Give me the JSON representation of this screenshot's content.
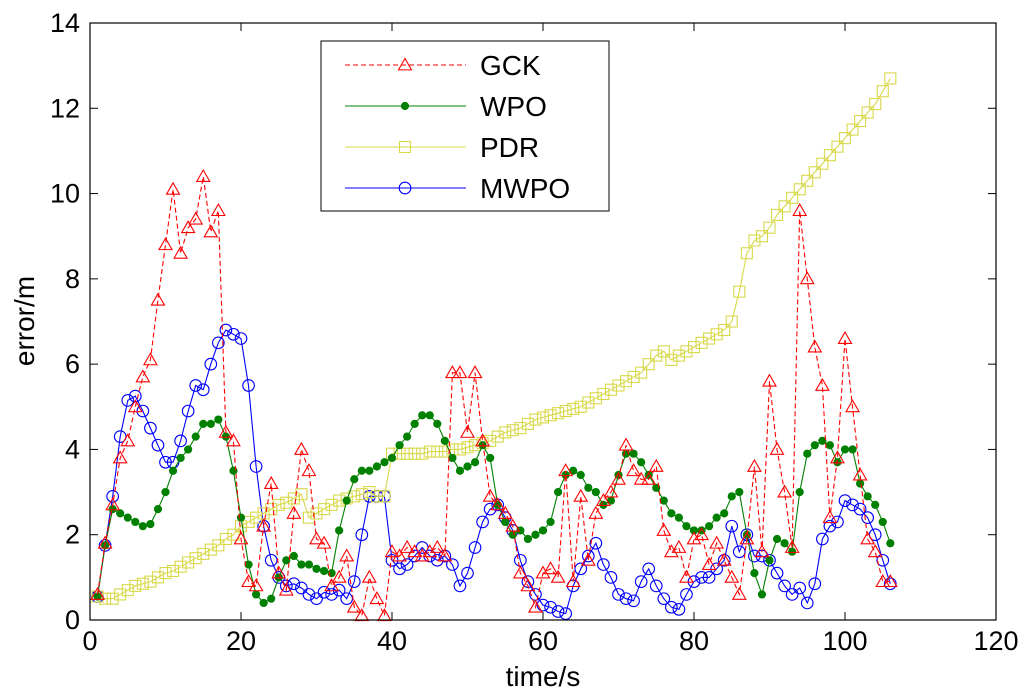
{
  "chart_data": {
    "type": "line",
    "title": "",
    "xlabel": "time/s",
    "ylabel": "error/m",
    "xlim": [
      0,
      120
    ],
    "ylim": [
      0,
      14
    ],
    "xticks": [
      0,
      20,
      40,
      60,
      80,
      100,
      120
    ],
    "yticks": [
      0,
      2,
      4,
      6,
      8,
      10,
      12,
      14
    ],
    "grid": false,
    "legend_position": "top-center",
    "series": [
      {
        "name": "GCK",
        "color": "#ff0000",
        "marker": "triangle",
        "line_style": "dashed",
        "x": [
          1,
          2,
          3,
          4,
          5,
          6,
          7,
          8,
          9,
          10,
          11,
          12,
          13,
          14,
          15,
          16,
          17,
          18,
          19,
          20,
          21,
          22,
          23,
          24,
          25,
          26,
          27,
          28,
          29,
          30,
          31,
          32,
          33,
          34,
          35,
          36,
          37,
          38,
          39,
          40,
          41,
          42,
          43,
          44,
          45,
          46,
          47,
          48,
          49,
          50,
          51,
          52,
          53,
          54,
          55,
          56,
          57,
          58,
          59,
          60,
          61,
          62,
          63,
          64,
          65,
          66,
          67,
          68,
          69,
          70,
          71,
          72,
          73,
          74,
          75,
          76,
          77,
          78,
          79,
          80,
          81,
          82,
          83,
          84,
          85,
          86,
          87,
          88,
          89,
          90,
          91,
          92,
          93,
          94,
          95,
          96,
          97,
          98,
          99,
          100,
          101,
          102,
          103,
          104,
          105,
          106
        ],
        "values": [
          0.6,
          1.8,
          2.7,
          3.8,
          4.2,
          5.0,
          5.7,
          6.1,
          7.5,
          8.8,
          10.1,
          8.6,
          9.2,
          9.4,
          10.4,
          9.1,
          9.6,
          4.4,
          4.2,
          1.9,
          0.9,
          0.8,
          2.2,
          3.2,
          1.1,
          0.7,
          2.5,
          4.0,
          3.5,
          1.9,
          1.8,
          0.8,
          1.0,
          1.5,
          0.3,
          0.1,
          1.0,
          0.5,
          0.1,
          1.6,
          1.5,
          1.7,
          1.6,
          1.5,
          1.6,
          1.7,
          1.5,
          5.8,
          5.8,
          4.4,
          5.8,
          4.2,
          2.9,
          2.7,
          2.5,
          2.2,
          1.1,
          0.8,
          0.3,
          1.1,
          1.2,
          1.0,
          3.5,
          0.9,
          2.9,
          1.4,
          2.5,
          2.8,
          3.0,
          3.3,
          4.1,
          3.5,
          3.3,
          3.3,
          3.6,
          2.1,
          1.6,
          1.7,
          1.0,
          1.9,
          2.0,
          1.3,
          1.8,
          1.4,
          1.0,
          0.6,
          1.9,
          3.6,
          1.6,
          5.6,
          4.0,
          3.0,
          1.7,
          9.6,
          8.0,
          6.4,
          5.5,
          2.4,
          3.8,
          6.6,
          5.0,
          3.4,
          1.9,
          1.6,
          0.9,
          0.9
        ]
      },
      {
        "name": "WPO",
        "color": "#008000",
        "marker": "filled-circle",
        "line_style": "solid",
        "x": [
          1,
          2,
          3,
          4,
          5,
          6,
          7,
          8,
          9,
          10,
          11,
          12,
          13,
          14,
          15,
          16,
          17,
          18,
          19,
          20,
          21,
          22,
          23,
          24,
          25,
          26,
          27,
          28,
          29,
          30,
          31,
          32,
          33,
          34,
          35,
          36,
          37,
          38,
          39,
          40,
          41,
          42,
          43,
          44,
          45,
          46,
          47,
          48,
          49,
          50,
          51,
          52,
          53,
          54,
          55,
          56,
          57,
          58,
          59,
          60,
          61,
          62,
          63,
          64,
          65,
          66,
          67,
          68,
          69,
          70,
          71,
          72,
          73,
          74,
          75,
          76,
          77,
          78,
          79,
          80,
          81,
          82,
          83,
          84,
          85,
          86,
          87,
          88,
          89,
          90,
          91,
          92,
          93,
          94,
          95,
          96,
          97,
          98,
          99,
          100,
          101,
          102,
          103,
          104,
          105,
          106
        ],
        "values": [
          0.55,
          1.75,
          2.6,
          2.5,
          2.4,
          2.3,
          2.2,
          2.25,
          2.6,
          3.0,
          3.5,
          3.8,
          4.0,
          4.3,
          4.6,
          4.6,
          4.7,
          4.3,
          3.5,
          2.4,
          1.3,
          0.6,
          0.4,
          0.5,
          1.0,
          1.4,
          1.5,
          1.3,
          1.3,
          1.2,
          1.15,
          1.1,
          2.1,
          2.8,
          3.3,
          3.5,
          3.5,
          3.6,
          3.7,
          3.8,
          4.1,
          4.3,
          4.6,
          4.8,
          4.8,
          4.6,
          4.2,
          3.8,
          3.5,
          3.6,
          3.7,
          4.1,
          3.8,
          2.7,
          2.3,
          2.0,
          2.1,
          1.9,
          2.0,
          2.1,
          2.3,
          3.0,
          3.4,
          3.5,
          3.4,
          3.1,
          3.0,
          2.7,
          2.8,
          3.4,
          3.9,
          3.9,
          3.7,
          3.4,
          3.1,
          2.8,
          2.5,
          2.4,
          2.2,
          2.1,
          2.1,
          2.2,
          2.4,
          2.5,
          2.9,
          3.0,
          2.0,
          1.1,
          0.6,
          1.4,
          1.9,
          1.8,
          1.6,
          3.0,
          3.9,
          4.1,
          4.2,
          4.1,
          3.7,
          4.0,
          4.0,
          3.2,
          2.9,
          2.7,
          2.3,
          1.8
        ]
      },
      {
        "name": "PDR",
        "color": "#d8d84a",
        "marker": "square",
        "line_style": "solid",
        "x": [
          1,
          2,
          3,
          4,
          5,
          6,
          7,
          8,
          9,
          10,
          11,
          12,
          13,
          14,
          15,
          16,
          17,
          18,
          19,
          20,
          21,
          22,
          23,
          24,
          25,
          26,
          27,
          28,
          29,
          30,
          31,
          32,
          33,
          34,
          35,
          36,
          37,
          38,
          39,
          40,
          41,
          42,
          43,
          44,
          45,
          46,
          47,
          48,
          49,
          50,
          51,
          52,
          53,
          54,
          55,
          56,
          57,
          58,
          59,
          60,
          61,
          62,
          63,
          64,
          65,
          66,
          67,
          68,
          69,
          70,
          71,
          72,
          73,
          74,
          75,
          76,
          77,
          78,
          79,
          80,
          81,
          82,
          83,
          84,
          85,
          86,
          87,
          88,
          89,
          90,
          91,
          92,
          93,
          94,
          95,
          96,
          97,
          98,
          99,
          100,
          101,
          102,
          103,
          104,
          105,
          106
        ],
        "values": [
          0.55,
          0.5,
          0.5,
          0.6,
          0.7,
          0.8,
          0.85,
          0.9,
          1.0,
          1.1,
          1.15,
          1.25,
          1.35,
          1.45,
          1.55,
          1.65,
          1.75,
          1.9,
          2.0,
          2.2,
          2.3,
          2.4,
          2.5,
          2.6,
          2.7,
          2.75,
          2.85,
          2.95,
          2.4,
          2.5,
          2.6,
          2.7,
          2.8,
          2.85,
          2.9,
          2.95,
          3.0,
          2.9,
          2.9,
          3.9,
          3.9,
          3.9,
          3.9,
          3.9,
          3.95,
          3.95,
          3.95,
          4.0,
          4.0,
          4.05,
          4.1,
          4.15,
          4.2,
          4.3,
          4.4,
          4.45,
          4.5,
          4.6,
          4.7,
          4.75,
          4.8,
          4.85,
          4.9,
          4.95,
          5.0,
          5.1,
          5.2,
          5.3,
          5.4,
          5.5,
          5.6,
          5.7,
          5.8,
          6.0,
          6.2,
          6.3,
          6.1,
          6.2,
          6.3,
          6.4,
          6.5,
          6.6,
          6.7,
          6.8,
          7.0,
          7.7,
          8.6,
          8.9,
          9.0,
          9.2,
          9.5,
          9.7,
          9.9,
          10.1,
          10.3,
          10.5,
          10.7,
          10.9,
          11.1,
          11.3,
          11.5,
          11.7,
          11.9,
          12.1,
          12.4,
          12.7
        ]
      },
      {
        "name": "MWPO",
        "color": "#0000ff",
        "marker": "circle",
        "line_style": "solid",
        "x": [
          1,
          2,
          3,
          4,
          5,
          6,
          7,
          8,
          9,
          10,
          11,
          12,
          13,
          14,
          15,
          16,
          17,
          18,
          19,
          20,
          21,
          22,
          23,
          24,
          25,
          26,
          27,
          28,
          29,
          30,
          31,
          32,
          33,
          34,
          35,
          36,
          37,
          38,
          39,
          40,
          41,
          42,
          43,
          44,
          45,
          46,
          47,
          48,
          49,
          50,
          51,
          52,
          53,
          54,
          55,
          56,
          57,
          58,
          59,
          60,
          61,
          62,
          63,
          64,
          65,
          66,
          67,
          68,
          69,
          70,
          71,
          72,
          73,
          74,
          75,
          76,
          77,
          78,
          79,
          80,
          81,
          82,
          83,
          84,
          85,
          86,
          87,
          88,
          89,
          90,
          91,
          92,
          93,
          94,
          95,
          96,
          97,
          98,
          99,
          100,
          101,
          102,
          103,
          104,
          105,
          106
        ],
        "values": [
          0.55,
          1.75,
          2.9,
          4.3,
          5.15,
          5.25,
          4.9,
          4.5,
          4.1,
          3.7,
          3.7,
          4.2,
          4.9,
          5.5,
          5.4,
          6.0,
          6.5,
          6.8,
          6.7,
          6.6,
          5.5,
          3.6,
          2.2,
          1.4,
          1.0,
          0.8,
          0.85,
          0.75,
          0.6,
          0.5,
          0.65,
          0.6,
          0.7,
          0.5,
          0.9,
          2.0,
          2.9,
          2.9,
          2.9,
          1.4,
          1.2,
          1.3,
          1.5,
          1.7,
          1.5,
          1.4,
          1.5,
          1.3,
          0.8,
          1.1,
          1.7,
          2.3,
          2.6,
          2.7,
          2.4,
          2.1,
          1.4,
          0.9,
          0.6,
          0.35,
          0.3,
          0.2,
          0.15,
          0.8,
          1.2,
          1.5,
          1.8,
          1.3,
          1.0,
          0.6,
          0.5,
          0.45,
          0.9,
          1.2,
          0.8,
          0.5,
          0.3,
          0.25,
          0.6,
          0.9,
          1.0,
          1.0,
          1.2,
          1.4,
          2.2,
          1.6,
          2.0,
          1.5,
          1.5,
          1.4,
          1.1,
          0.8,
          0.6,
          0.75,
          0.4,
          0.85,
          1.9,
          2.2,
          2.3,
          2.8,
          2.7,
          2.6,
          2.4,
          2.0,
          1.4,
          0.85
        ]
      }
    ]
  }
}
